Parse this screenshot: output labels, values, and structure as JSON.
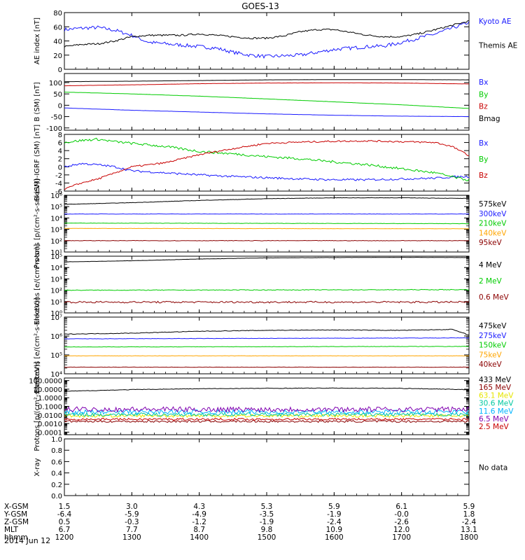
{
  "title": "GOES-13",
  "date_label": "2014 Jun 12",
  "colors": {
    "black": "#000000",
    "blue": "#1a1aff",
    "green": "#00cc00",
    "red": "#c80000",
    "orange": "#ffa500",
    "yellow": "#e6e600",
    "cyan": "#00b4ff",
    "teal": "#00c8a0",
    "purple": "#8000b0",
    "darkred": "#8b0000"
  },
  "chart_data": [
    {
      "type": "line",
      "id": "ae",
      "ylabel": "AE index [nT]",
      "scale": "linear",
      "ylim": [
        0,
        80
      ],
      "ticks": [
        0,
        20,
        40,
        60,
        80
      ],
      "tick_labels": [
        "0",
        "20",
        "40",
        "60",
        "80"
      ],
      "series": [
        {
          "name": "Kyoto AE",
          "color": "blue",
          "x": [
            1200,
            1215,
            1230,
            1245,
            1300,
            1315,
            1330,
            1345,
            1400,
            1415,
            1430,
            1445,
            1500,
            1515,
            1530,
            1545,
            1600,
            1615,
            1630,
            1645,
            1700,
            1715,
            1730,
            1745,
            1800
          ],
          "y": [
            56,
            58,
            59,
            55,
            48,
            38,
            36,
            34,
            32,
            30,
            24,
            20,
            18,
            19,
            20,
            24,
            28,
            30,
            32,
            33,
            38,
            44,
            50,
            58,
            66
          ],
          "noise": 2.5
        },
        {
          "name": "Themis AE",
          "color": "black",
          "x": [
            1200,
            1215,
            1230,
            1245,
            1300,
            1315,
            1330,
            1345,
            1400,
            1415,
            1430,
            1445,
            1500,
            1515,
            1530,
            1545,
            1600,
            1615,
            1630,
            1645,
            1700,
            1715,
            1730,
            1745,
            1800
          ],
          "y": [
            32,
            35,
            36,
            40,
            46,
            48,
            48,
            48,
            50,
            48,
            46,
            44,
            44,
            47,
            53,
            56,
            56,
            52,
            48,
            46,
            46,
            50,
            56,
            62,
            68
          ],
          "noise": 1.2
        }
      ]
    },
    {
      "type": "line",
      "id": "bsm",
      "ylabel": "B (SM) [nT]",
      "scale": "linear",
      "ylim": [
        -110,
        140
      ],
      "ticks": [
        -100,
        -50,
        0,
        50,
        100
      ],
      "tick_labels": [
        "-100",
        "-50",
        "0",
        "50",
        "100"
      ],
      "series": [
        {
          "name": "Bx",
          "color": "blue",
          "x": [
            1200,
            1300,
            1400,
            1500,
            1600,
            1700,
            1800
          ],
          "y": [
            -12,
            -22,
            -30,
            -38,
            -44,
            -48,
            -50
          ],
          "noise": 0.3
        },
        {
          "name": "By",
          "color": "green",
          "x": [
            1200,
            1300,
            1400,
            1500,
            1600,
            1700,
            1800
          ],
          "y": [
            58,
            50,
            40,
            28,
            15,
            2,
            -14
          ],
          "noise": 0.3
        },
        {
          "name": "Bz",
          "color": "red",
          "x": [
            1200,
            1300,
            1400,
            1500,
            1600,
            1700,
            1800
          ],
          "y": [
            86,
            90,
            95,
            98,
            99,
            98,
            94
          ],
          "noise": 0.4
        },
        {
          "name": "Bmag",
          "color": "black",
          "x": [
            1200,
            1300,
            1400,
            1500,
            1600,
            1700,
            1800
          ],
          "y": [
            104,
            106,
            109,
            112,
            113,
            113,
            112
          ],
          "noise": 0.2
        }
      ]
    },
    {
      "type": "line",
      "id": "bdiff",
      "ylabel": "B (SM)-IGRF (SM) [nT]",
      "scale": "linear",
      "ylim": [
        -6,
        8
      ],
      "ticks": [
        -6,
        -4,
        -2,
        0,
        2,
        4,
        6,
        8
      ],
      "tick_labels": [
        "-6",
        "-4",
        "-2",
        "0",
        "2",
        "4",
        "6",
        "8"
      ],
      "series": [
        {
          "name": "Bx",
          "color": "blue",
          "x": [
            1200,
            1215,
            1230,
            1245,
            1300,
            1330,
            1400,
            1430,
            1500,
            1530,
            1600,
            1630,
            1700,
            1730,
            1745,
            1800
          ],
          "y": [
            0,
            0.8,
            0.5,
            0,
            -1,
            -1.5,
            -2,
            -2.4,
            -2.7,
            -3,
            -3.2,
            -3.2,
            -3,
            -2.8,
            -2.5,
            -2.4
          ],
          "noise": 0.25
        },
        {
          "name": "By",
          "color": "green",
          "x": [
            1200,
            1215,
            1230,
            1245,
            1300,
            1330,
            1400,
            1430,
            1500,
            1530,
            1600,
            1630,
            1700,
            1730,
            1745,
            1800
          ],
          "y": [
            6,
            6.5,
            6.8,
            6.2,
            5.8,
            5,
            3.8,
            3.2,
            2.5,
            2,
            1.2,
            0.5,
            -0.5,
            -1.5,
            -2.5,
            -3.3
          ],
          "noise": 0.3
        },
        {
          "name": "Bz",
          "color": "red",
          "x": [
            1200,
            1215,
            1230,
            1245,
            1300,
            1330,
            1400,
            1430,
            1500,
            1530,
            1600,
            1630,
            1700,
            1730,
            1745,
            1800
          ],
          "y": [
            -5.5,
            -4,
            -3,
            -1.5,
            0,
            1,
            3,
            4.5,
            5.8,
            6.1,
            6.3,
            6.4,
            6.2,
            6,
            5,
            2.8
          ],
          "noise": 0.2
        }
      ]
    },
    {
      "type": "line",
      "id": "protons_lo",
      "ylabel": "Protons [p/(cm²-s-sr-keV)]",
      "scale": "log",
      "ylim": [
        1,
        6
      ],
      "ticks": [
        1,
        2,
        3,
        4,
        5,
        6
      ],
      "tick_labels": [
        "10¹",
        "10²",
        "10³",
        "10⁴",
        "10⁵",
        "10⁶"
      ],
      "series": [
        {
          "name": "575keV",
          "color": "black",
          "x": [
            1200,
            1300,
            1400,
            1500,
            1600,
            1700,
            1800
          ],
          "y": [
            5.2,
            5.35,
            5.55,
            5.7,
            5.78,
            5.78,
            5.72
          ],
          "noise": 0.015
        },
        {
          "name": "300keV",
          "color": "blue",
          "x": [
            1200,
            1800
          ],
          "y": [
            4.35,
            4.35
          ],
          "noise": 0.015
        },
        {
          "name": "210keV",
          "color": "green",
          "x": [
            1200,
            1800
          ],
          "y": [
            3.55,
            3.5
          ],
          "noise": 0.015
        },
        {
          "name": "140keV",
          "color": "orange",
          "x": [
            1200,
            1800
          ],
          "y": [
            3.08,
            3.05
          ],
          "noise": 0.01
        },
        {
          "name": "95keV",
          "color": "darkred",
          "x": [
            1200,
            1800
          ],
          "y": [
            2.0,
            2.0
          ],
          "noise": 0.02
        }
      ]
    },
    {
      "type": "line",
      "id": "electrons_hi",
      "ylabel": "Electrons [e/(cm²-s-sr)]",
      "scale": "log",
      "ylim": [
        0,
        5
      ],
      "ticks": [
        0,
        1,
        2,
        3,
        4,
        5
      ],
      "tick_labels": [
        "10⁰",
        "10¹",
        "10²",
        "10³",
        "10⁴",
        "10⁵"
      ],
      "series": [
        {
          "name": "4 MeV",
          "color": "black",
          "x": [
            1200,
            1300,
            1400,
            1500,
            1600,
            1700,
            1800
          ],
          "y": [
            4.5,
            4.6,
            4.75,
            4.85,
            4.88,
            4.9,
            4.88
          ],
          "noise": 0.01
        },
        {
          "name": "2 MeV",
          "color": "green",
          "x": [
            1200,
            1800
          ],
          "y": [
            2.0,
            2.05
          ],
          "noise": 0.03
        },
        {
          "name": "0.6 MeV",
          "color": "darkred",
          "x": [
            1200,
            1800
          ],
          "y": [
            0.95,
            0.95
          ],
          "noise": 0.08
        }
      ]
    },
    {
      "type": "line",
      "id": "electrons_lo",
      "ylabel": "Electrons [e/(cm²-s-sr-keV)]",
      "scale": "log",
      "ylim": [
        4,
        7
      ],
      "ticks": [
        4,
        5,
        6,
        7
      ],
      "tick_labels": [
        "10⁴",
        "10⁵",
        "10⁶",
        "10⁷"
      ],
      "series": [
        {
          "name": "475keV",
          "color": "black",
          "x": [
            1200,
            1300,
            1400,
            1500,
            1600,
            1700,
            1745,
            1800
          ],
          "y": [
            6.1,
            6.15,
            6.25,
            6.3,
            6.32,
            6.3,
            6.35,
            6.05
          ],
          "noise": 0.015
        },
        {
          "name": "275keV",
          "color": "blue",
          "x": [
            1200,
            1800
          ],
          "y": [
            5.85,
            5.9
          ],
          "noise": 0.01
        },
        {
          "name": "150keV",
          "color": "green",
          "x": [
            1200,
            1800
          ],
          "y": [
            5.42,
            5.45
          ],
          "noise": 0.01
        },
        {
          "name": "75keV",
          "color": "orange",
          "x": [
            1200,
            1800
          ],
          "y": [
            4.95,
            4.95
          ],
          "noise": 0.01
        },
        {
          "name": "40keV",
          "color": "darkred",
          "x": [
            1200,
            1800
          ],
          "y": [
            4.35,
            4.35
          ],
          "noise": 0.01
        }
      ]
    },
    {
      "type": "line",
      "id": "protons_hi",
      "ylabel": "Protons [p/(cm²-s-sr-keV)]",
      "scale": "log",
      "ylim": [
        -4.3,
        2.3
      ],
      "ticks": [
        -4,
        -3,
        -2,
        -1,
        0,
        1,
        2
      ],
      "tick_labels": [
        "0.0001",
        "0.0010",
        "0.0100",
        "0.1000",
        "1.0000",
        "10.0000",
        "100.0000"
      ],
      "series": [
        {
          "name": "433 MeV",
          "color": "black",
          "x": [
            1200,
            1300,
            1400,
            1500,
            1600,
            1700,
            1800
          ],
          "y": [
            0.75,
            0.95,
            1.05,
            1.1,
            1.12,
            1.1,
            0.95
          ],
          "noise": 0.03
        },
        {
          "name": "165 MeV",
          "color": "darkred",
          "x": [
            1200,
            1800
          ],
          "y": [
            -2.75,
            -2.75
          ],
          "noise": 0.12
        },
        {
          "name": "63.1 MeV",
          "color": "yellow",
          "x": [
            1200,
            1800
          ],
          "y": [
            -2.1,
            -2.1
          ],
          "noise": 0.18
        },
        {
          "name": "30.6 MeV",
          "color": "teal",
          "x": [
            1200,
            1800
          ],
          "y": [
            -1.95,
            -1.95
          ],
          "noise": 0.2
        },
        {
          "name": "11.6 MeV",
          "color": "cyan",
          "x": [
            1200,
            1800
          ],
          "y": [
            -1.65,
            -1.65
          ],
          "noise": 0.25
        },
        {
          "name": "6.5 MeV",
          "color": "purple",
          "x": [
            1200,
            1800
          ],
          "y": [
            -1.35,
            -1.35
          ],
          "noise": 0.3
        },
        {
          "name": "2.5 MeV",
          "color": "red",
          "x": [
            1200,
            1800
          ],
          "y": [
            -2.5,
            -2.5
          ],
          "noise": 0.12
        }
      ]
    },
    {
      "type": "line",
      "id": "xray",
      "ylabel": "X-ray",
      "scale": "linear",
      "ylim": [
        0,
        1
      ],
      "ticks": [
        0,
        0.2,
        0.4,
        0.6,
        0.8,
        1.0
      ],
      "tick_labels": [
        "0.0",
        "0.2",
        "0.4",
        "0.6",
        "0.8",
        "1.0"
      ],
      "no_data_label": "No data",
      "series": []
    }
  ],
  "xaxis": {
    "range": [
      1200,
      1800
    ],
    "ticks": [
      1200,
      1300,
      1400,
      1500,
      1600,
      1700,
      1800
    ],
    "rows": [
      {
        "label": "X-GSM",
        "values": [
          "1.5",
          "3.0",
          "4.3",
          "5.3",
          "5.9",
          "6.1",
          "5.9"
        ]
      },
      {
        "label": "Y-GSM",
        "values": [
          "-6.4",
          "-5.9",
          "-4.9",
          "-3.5",
          "-1.9",
          "-0.0",
          "1.8"
        ]
      },
      {
        "label": "Z-GSM",
        "values": [
          "0.5",
          "-0.3",
          "-1.2",
          "-1.9",
          "-2.4",
          "-2.6",
          "-2.4"
        ]
      },
      {
        "label": "MLT",
        "values": [
          "6.7",
          "7.7",
          "8.7",
          "9.8",
          "10.9",
          "12.0",
          "13.1"
        ]
      },
      {
        "label": "hhmm",
        "values": [
          "1200",
          "1300",
          "1400",
          "1500",
          "1600",
          "1700",
          "1800"
        ]
      }
    ]
  }
}
